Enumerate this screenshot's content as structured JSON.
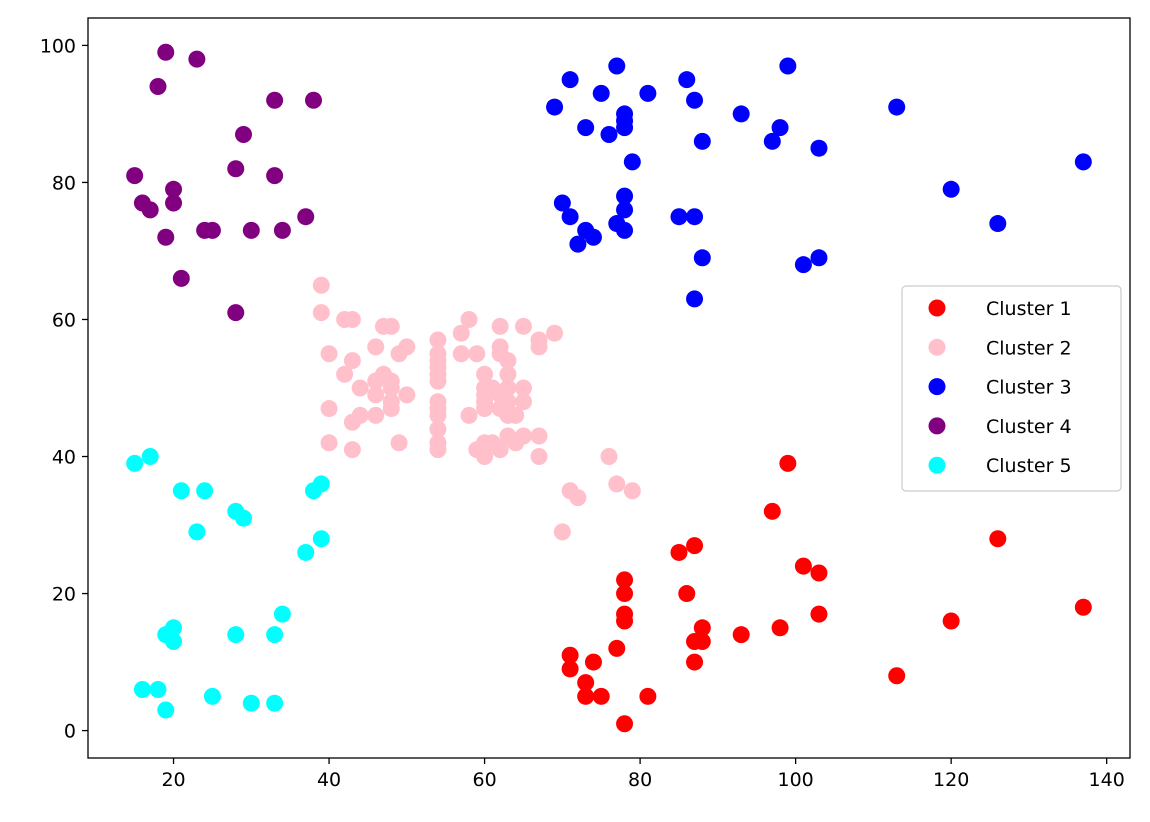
{
  "chart_data": {
    "type": "scatter",
    "title": "",
    "xlabel": "",
    "ylabel": "",
    "xlim": [
      9,
      143
    ],
    "ylim": [
      -4,
      104
    ],
    "xticks": [
      20,
      40,
      60,
      80,
      100,
      120,
      140
    ],
    "yticks": [
      0,
      20,
      40,
      60,
      80,
      100
    ],
    "grid": false,
    "legend_position": "center-right",
    "series": [
      {
        "name": "Cluster 1",
        "color": "#ff0000",
        "points": [
          [
            99,
            39
          ],
          [
            97,
            32
          ],
          [
            126,
            28
          ],
          [
            87,
            27
          ],
          [
            85,
            26
          ],
          [
            101,
            24
          ],
          [
            103,
            23
          ],
          [
            78,
            22
          ],
          [
            78,
            20
          ],
          [
            86,
            20
          ],
          [
            78,
            17
          ],
          [
            103,
            17
          ],
          [
            78,
            16
          ],
          [
            120,
            16
          ],
          [
            137,
            18
          ],
          [
            88,
            15
          ],
          [
            98,
            15
          ],
          [
            93,
            14
          ],
          [
            88,
            13
          ],
          [
            87,
            13
          ],
          [
            77,
            12
          ],
          [
            71,
            11
          ],
          [
            74,
            10
          ],
          [
            87,
            10
          ],
          [
            71,
            9
          ],
          [
            113,
            8
          ],
          [
            73,
            7
          ],
          [
            73,
            5
          ],
          [
            75,
            5
          ],
          [
            81,
            5
          ],
          [
            78,
            1
          ]
        ]
      },
      {
        "name": "Cluster 2",
        "color": "#ffc0cb",
        "points": [
          [
            39,
            65
          ],
          [
            39,
            61
          ],
          [
            42,
            60
          ],
          [
            43,
            60
          ],
          [
            47,
            59
          ],
          [
            48,
            59
          ],
          [
            58,
            60
          ],
          [
            62,
            59
          ],
          [
            65,
            59
          ],
          [
            57,
            58
          ],
          [
            69,
            58
          ],
          [
            54,
            57
          ],
          [
            62,
            56
          ],
          [
            67,
            57
          ],
          [
            67,
            56
          ],
          [
            46,
            56
          ],
          [
            50,
            56
          ],
          [
            40,
            55
          ],
          [
            49,
            55
          ],
          [
            54,
            55
          ],
          [
            57,
            55
          ],
          [
            59,
            55
          ],
          [
            62,
            55
          ],
          [
            43,
            54
          ],
          [
            54,
            54
          ],
          [
            63,
            54
          ],
          [
            54,
            53
          ],
          [
            42,
            52
          ],
          [
            47,
            52
          ],
          [
            54,
            52
          ],
          [
            60,
            52
          ],
          [
            63,
            52
          ],
          [
            46,
            51
          ],
          [
            48,
            51
          ],
          [
            54,
            51
          ],
          [
            44,
            50
          ],
          [
            48,
            50
          ],
          [
            60,
            50
          ],
          [
            61,
            50
          ],
          [
            63,
            50
          ],
          [
            65,
            50
          ],
          [
            46,
            49
          ],
          [
            50,
            49
          ],
          [
            60,
            49
          ],
          [
            62,
            49
          ],
          [
            48,
            48
          ],
          [
            54,
            48
          ],
          [
            60,
            48
          ],
          [
            63,
            48
          ],
          [
            65,
            48
          ],
          [
            40,
            47
          ],
          [
            48,
            47
          ],
          [
            54,
            47
          ],
          [
            60,
            47
          ],
          [
            62,
            47
          ],
          [
            44,
            46
          ],
          [
            46,
            46
          ],
          [
            54,
            46
          ],
          [
            58,
            46
          ],
          [
            63,
            46
          ],
          [
            64,
            46
          ],
          [
            43,
            45
          ],
          [
            54,
            44
          ],
          [
            63,
            43
          ],
          [
            65,
            43
          ],
          [
            67,
            43
          ],
          [
            40,
            42
          ],
          [
            49,
            42
          ],
          [
            54,
            42
          ],
          [
            60,
            42
          ],
          [
            61,
            42
          ],
          [
            64,
            42
          ],
          [
            43,
            41
          ],
          [
            54,
            41
          ],
          [
            59,
            41
          ],
          [
            62,
            41
          ],
          [
            60,
            40
          ],
          [
            67,
            40
          ],
          [
            76,
            40
          ],
          [
            71,
            35
          ],
          [
            77,
            36
          ],
          [
            79,
            35
          ],
          [
            72,
            34
          ],
          [
            70,
            29
          ]
        ]
      },
      {
        "name": "Cluster 3",
        "color": "#0000ff",
        "points": [
          [
            77,
            97
          ],
          [
            99,
            97
          ],
          [
            71,
            95
          ],
          [
            86,
            95
          ],
          [
            75,
            93
          ],
          [
            81,
            93
          ],
          [
            69,
            91
          ],
          [
            113,
            91
          ],
          [
            87,
            92
          ],
          [
            78,
            90
          ],
          [
            93,
            90
          ],
          [
            78,
            89
          ],
          [
            73,
            88
          ],
          [
            78,
            88
          ],
          [
            98,
            88
          ],
          [
            76,
            87
          ],
          [
            88,
            86
          ],
          [
            97,
            86
          ],
          [
            103,
            85
          ],
          [
            79,
            83
          ],
          [
            137,
            83
          ],
          [
            120,
            79
          ],
          [
            78,
            78
          ],
          [
            70,
            77
          ],
          [
            78,
            76
          ],
          [
            71,
            75
          ],
          [
            85,
            75
          ],
          [
            87,
            75
          ],
          [
            77,
            74
          ],
          [
            126,
            74
          ],
          [
            73,
            73
          ],
          [
            78,
            73
          ],
          [
            74,
            72
          ],
          [
            72,
            71
          ],
          [
            88,
            69
          ],
          [
            103,
            69
          ],
          [
            101,
            68
          ],
          [
            87,
            63
          ]
        ]
      },
      {
        "name": "Cluster 4",
        "color": "#800080",
        "points": [
          [
            19,
            99
          ],
          [
            23,
            98
          ],
          [
            18,
            94
          ],
          [
            33,
            92
          ],
          [
            38,
            92
          ],
          [
            29,
            87
          ],
          [
            28,
            82
          ],
          [
            15,
            81
          ],
          [
            33,
            81
          ],
          [
            20,
            79
          ],
          [
            16,
            77
          ],
          [
            20,
            77
          ],
          [
            17,
            76
          ],
          [
            37,
            75
          ],
          [
            24,
            73
          ],
          [
            25,
            73
          ],
          [
            30,
            73
          ],
          [
            34,
            73
          ],
          [
            19,
            72
          ],
          [
            21,
            66
          ],
          [
            28,
            61
          ]
        ]
      },
      {
        "name": "Cluster 5",
        "color": "#00ffff",
        "points": [
          [
            17,
            40
          ],
          [
            15,
            39
          ],
          [
            39,
            36
          ],
          [
            21,
            35
          ],
          [
            24,
            35
          ],
          [
            38,
            35
          ],
          [
            28,
            32
          ],
          [
            29,
            31
          ],
          [
            23,
            29
          ],
          [
            39,
            28
          ],
          [
            37,
            26
          ],
          [
            34,
            17
          ],
          [
            20,
            15
          ],
          [
            19,
            14
          ],
          [
            28,
            14
          ],
          [
            33,
            14
          ],
          [
            20,
            13
          ],
          [
            16,
            6
          ],
          [
            18,
            6
          ],
          [
            25,
            5
          ],
          [
            30,
            4
          ],
          [
            33,
            4
          ],
          [
            19,
            3
          ]
        ]
      }
    ]
  }
}
